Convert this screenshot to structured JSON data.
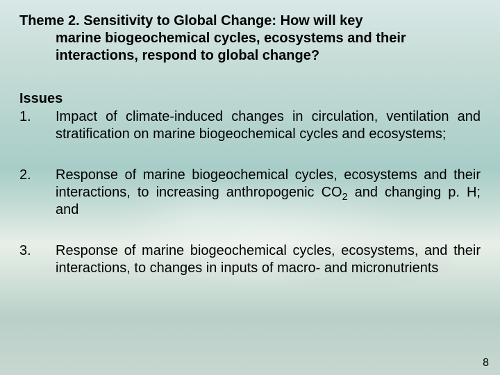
{
  "colors": {
    "text": "#000000",
    "bg_top": "#d8e8e8",
    "bg_mid": "#a8cdc8",
    "bg_light": "#e8efe8",
    "bg_bottom": "#c8d8d0"
  },
  "typography": {
    "family": "Arial",
    "title_size_pt": 15,
    "body_size_pt": 15,
    "title_weight": "bold",
    "body_weight": "normal"
  },
  "title": {
    "line1": "Theme 2. Sensitivity to Global Change: How will key",
    "line2": "marine biogeochemical cycles, ecosystems and their",
    "line3": "interactions, respond to global change?"
  },
  "issues_label": "Issues",
  "items": [
    {
      "num": "1.",
      "text": "Impact of climate-induced changes in circulation, ventilation and stratification on marine biogeochemical cycles and ecosystems;"
    },
    {
      "num": "2.",
      "text_pre": "Response of marine biogeochemical cycles, ecosystems and their interactions, to increasing anthropogenic CO",
      "text_sub": "2",
      "text_post": " and changing p. H; and"
    },
    {
      "num": "3.",
      "text": "Response of marine biogeochemical cycles, ecosystems, and their interactions, to changes in inputs of macro- and micronutrients"
    }
  ],
  "page_number": "8"
}
